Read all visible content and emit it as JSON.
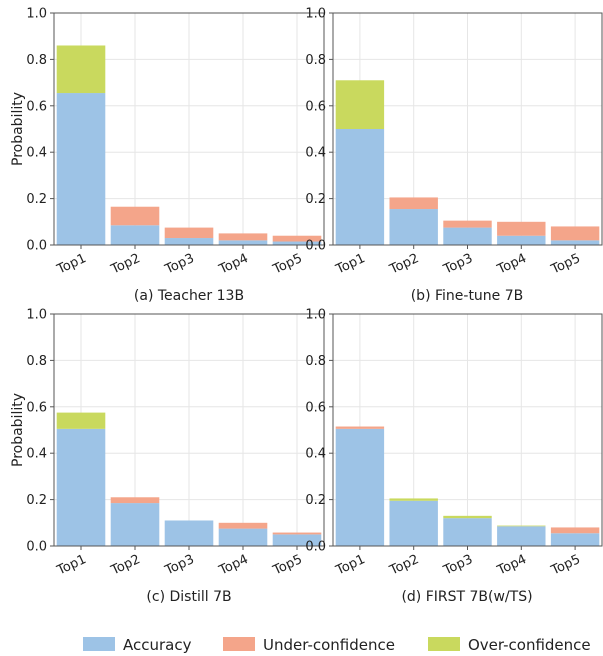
{
  "legend": [
    {
      "key": "accuracy",
      "label": "Accuracy",
      "color": "#9dc3e6"
    },
    {
      "key": "under",
      "label": "Under-confidence",
      "color": "#f4a58a"
    },
    {
      "key": "over",
      "label": "Over-confidence",
      "color": "#c9d95e"
    }
  ],
  "axis": {
    "ylabel": "Probability",
    "yticks": [
      "0.0",
      "0.2",
      "0.4",
      "0.6",
      "0.8",
      "1.0"
    ]
  },
  "chart_data": [
    {
      "type": "bar",
      "stacked": true,
      "title": "(a) Teacher 13B",
      "categories": [
        "Top1",
        "Top2",
        "Top3",
        "Top4",
        "Top5"
      ],
      "ylim": [
        0,
        1.0
      ],
      "ylabel": "Probability",
      "grid": true,
      "series": [
        {
          "name": "Accuracy",
          "values": [
            0.655,
            0.085,
            0.03,
            0.02,
            0.015
          ]
        },
        {
          "name": "Under-confidence",
          "values": [
            0,
            0.08,
            0.045,
            0.03,
            0.025
          ]
        },
        {
          "name": "Over-confidence",
          "values": [
            0.205,
            0,
            0,
            0,
            0
          ]
        }
      ]
    },
    {
      "type": "bar",
      "stacked": true,
      "title": "(b) Fine-tune 7B",
      "categories": [
        "Top1",
        "Top2",
        "Top3",
        "Top4",
        "Top5"
      ],
      "ylim": [
        0,
        1.0
      ],
      "ylabel": "",
      "grid": true,
      "series": [
        {
          "name": "Accuracy",
          "values": [
            0.5,
            0.155,
            0.075,
            0.04,
            0.02
          ]
        },
        {
          "name": "Under-confidence",
          "values": [
            0,
            0.05,
            0.03,
            0.06,
            0.06
          ]
        },
        {
          "name": "Over-confidence",
          "values": [
            0.21,
            0,
            0,
            0,
            0
          ]
        }
      ]
    },
    {
      "type": "bar",
      "stacked": true,
      "title": "(c) Distill 7B",
      "categories": [
        "Top1",
        "Top2",
        "Top3",
        "Top4",
        "Top5"
      ],
      "ylim": [
        0,
        1.0
      ],
      "ylabel": "Probability",
      "grid": true,
      "series": [
        {
          "name": "Accuracy",
          "values": [
            0.505,
            0.185,
            0.11,
            0.075,
            0.05
          ]
        },
        {
          "name": "Under-confidence",
          "values": [
            0,
            0.025,
            0,
            0.025,
            0.008
          ]
        },
        {
          "name": "Over-confidence",
          "values": [
            0.07,
            0,
            0,
            0,
            0
          ]
        }
      ]
    },
    {
      "type": "bar",
      "stacked": true,
      "title": "(d) FIRST 7B(w/TS)",
      "categories": [
        "Top1",
        "Top2",
        "Top3",
        "Top4",
        "Top5"
      ],
      "ylim": [
        0,
        1.0
      ],
      "ylabel": "",
      "grid": true,
      "series": [
        {
          "name": "Accuracy",
          "values": [
            0.505,
            0.195,
            0.12,
            0.085,
            0.055
          ]
        },
        {
          "name": "Under-confidence",
          "values": [
            0.01,
            0,
            0,
            0,
            0.025
          ]
        },
        {
          "name": "Over-confidence",
          "values": [
            0,
            0.01,
            0.01,
            0.003,
            0
          ]
        }
      ]
    }
  ]
}
